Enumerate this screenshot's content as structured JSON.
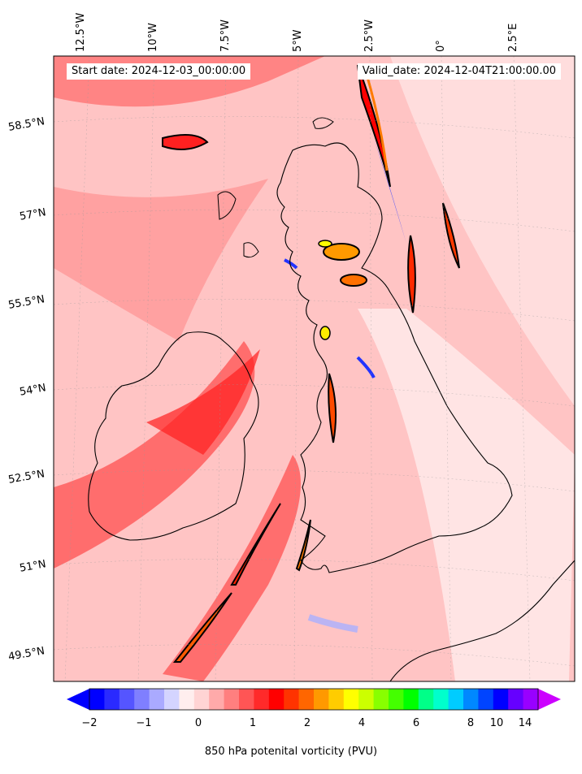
{
  "map": {
    "start_label": "Start date: 2024-12-03_00:00:00",
    "valid_label": "Valid_date: 2024-12-04T21:00:00.00",
    "lon_labels": [
      "12.5°W",
      "10°W",
      "7.5°W",
      "5°W",
      "2.5°W",
      "0°",
      "2.5°E"
    ],
    "lat_labels": [
      "58.5°N",
      "57°N",
      "55.5°N",
      "54°N",
      "52.5°N",
      "51°N",
      "49.5°N"
    ],
    "colors": {
      "land_outline": "#000000",
      "high_pv": "#ff0000",
      "low_pv": "#0000ff"
    }
  },
  "colorbar": {
    "label": "850 hPa potenital vorticity (PVU)",
    "ticks": [
      "−2",
      "−1",
      "0",
      "1",
      "2",
      "4",
      "6",
      "8",
      "10",
      "14"
    ],
    "colors": [
      "#0000ff",
      "#2a2aff",
      "#5555ff",
      "#7f7fff",
      "#aaaaff",
      "#d4d4ff",
      "#ffeeee",
      "#ffd4d4",
      "#ffaaaa",
      "#ff7f7f",
      "#ff5555",
      "#ff2a2a",
      "#ff0000",
      "#ff3300",
      "#ff6600",
      "#ff9900",
      "#ffcc00",
      "#ffff00",
      "#ccff00",
      "#88ff00",
      "#44ff00",
      "#00ff00",
      "#00ff88",
      "#00ffcc",
      "#00ccff",
      "#0088ff",
      "#0044ff",
      "#0000ff",
      "#6600ff",
      "#9900ff"
    ],
    "under_color": "#0000ff",
    "over_color": "#cc00ff"
  }
}
